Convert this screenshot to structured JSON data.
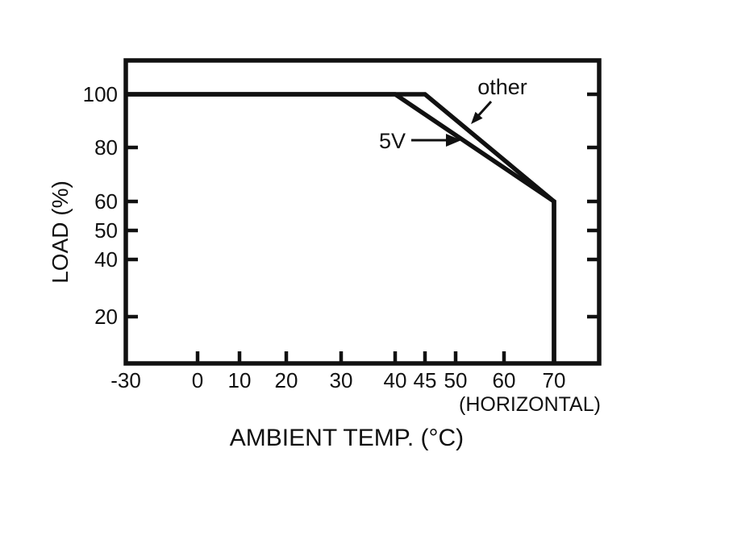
{
  "chart_data": {
    "type": "line",
    "title": "",
    "xlabel": "AMBIENT TEMP. (°C)",
    "x_axis_note": "(HORIZONTAL)",
    "ylabel": "LOAD (%)",
    "xlim": [
      -30,
      80
    ],
    "ylim": [
      0,
      112
    ],
    "grid": false,
    "legend_position": "inline-annotations",
    "line_color": "#111111",
    "x_ticks": [
      {
        "value": -30,
        "label": "-30"
      },
      {
        "value": 0,
        "label": "0"
      },
      {
        "value": 10,
        "label": "10"
      },
      {
        "value": 20,
        "label": "20"
      },
      {
        "value": 30,
        "label": "30"
      },
      {
        "value": 40,
        "label": "40"
      },
      {
        "value": 45,
        "label": "45"
      },
      {
        "value": 50,
        "label": "50"
      },
      {
        "value": 60,
        "label": "60"
      },
      {
        "value": 70,
        "label": "70"
      }
    ],
    "y_ticks": [
      {
        "value": 20,
        "label": "20"
      },
      {
        "value": 40,
        "label": "40"
      },
      {
        "value": 50,
        "label": "50"
      },
      {
        "value": 60,
        "label": "60"
      },
      {
        "value": 80,
        "label": "80"
      },
      {
        "value": 100,
        "label": "100"
      }
    ],
    "series": [
      {
        "name": "other",
        "points": [
          [
            -30,
            100
          ],
          [
            45,
            100
          ],
          [
            70,
            60
          ],
          [
            70,
            0
          ]
        ]
      },
      {
        "name": "5V",
        "points": [
          [
            -30,
            100
          ],
          [
            40,
            100
          ],
          [
            70,
            60
          ],
          [
            70,
            0
          ]
        ]
      }
    ],
    "annotations": [
      {
        "text": "other",
        "points_to": "other"
      },
      {
        "text": "5V",
        "points_to": "5V"
      }
    ]
  }
}
